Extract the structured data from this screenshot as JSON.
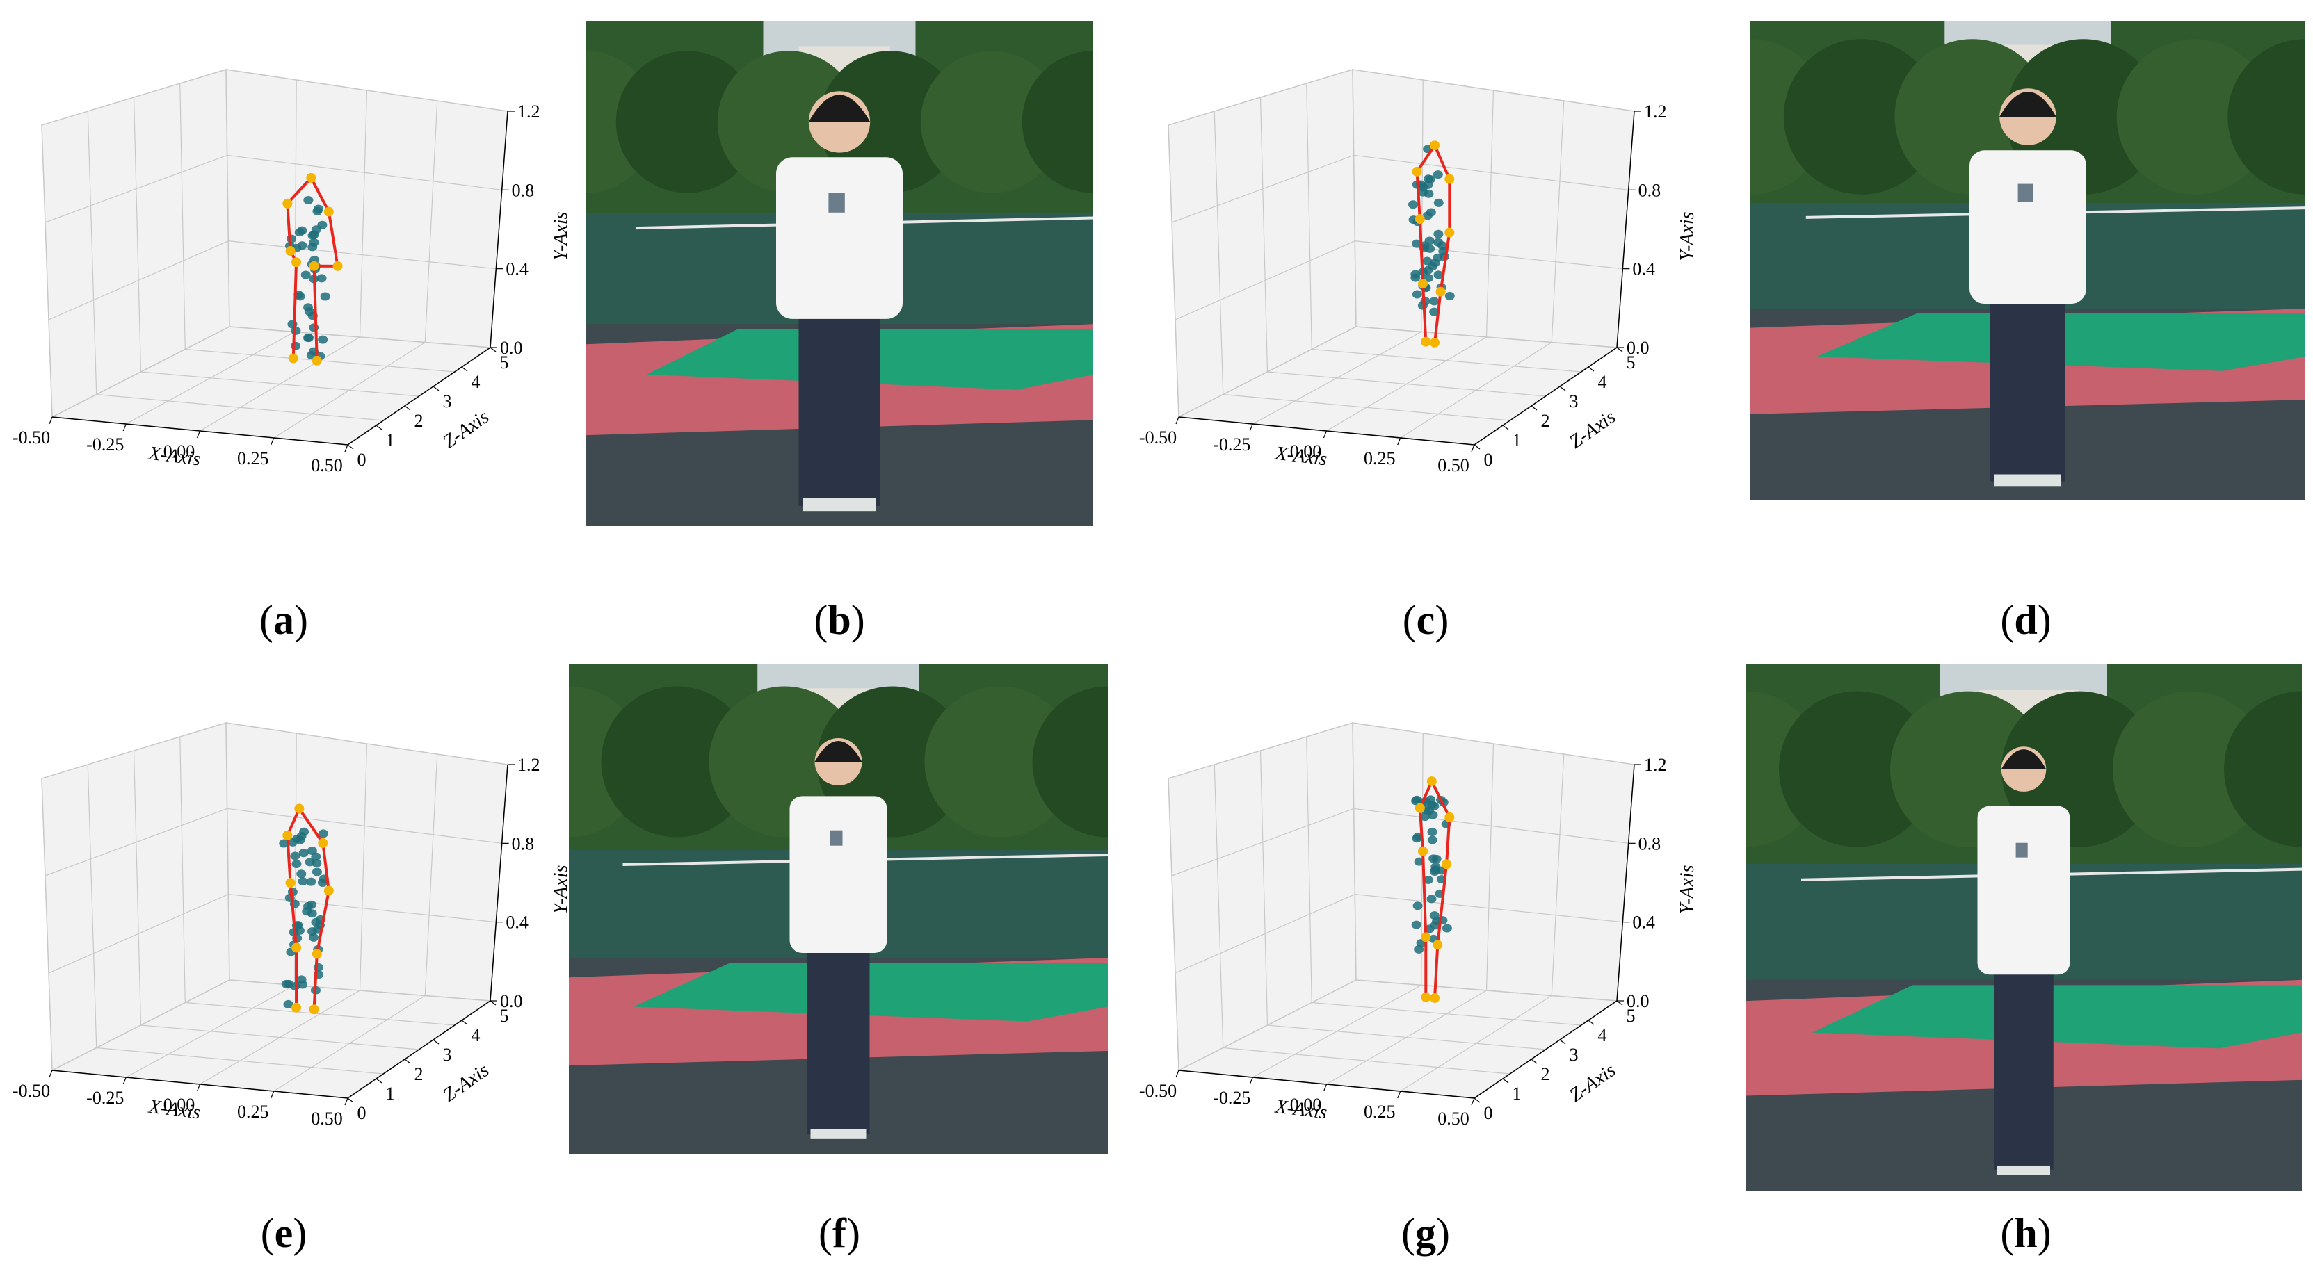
{
  "panels": [
    {
      "id": "a",
      "kind": "plot",
      "caption": "a"
    },
    {
      "id": "b",
      "kind": "photo",
      "caption": "b"
    },
    {
      "id": "c",
      "kind": "plot",
      "caption": "c"
    },
    {
      "id": "d",
      "kind": "photo",
      "caption": "d"
    },
    {
      "id": "e",
      "kind": "plot",
      "caption": "e"
    },
    {
      "id": "f",
      "kind": "photo",
      "caption": "f"
    },
    {
      "id": "g",
      "kind": "plot",
      "caption": "g"
    },
    {
      "id": "h",
      "kind": "photo",
      "caption": "h"
    }
  ],
  "caption_parens": {
    "open": "(",
    "close": ")"
  },
  "colors": {
    "skeleton_line": "#e8261e",
    "joint": "#f5b400",
    "point_cloud": "#1d6e7a",
    "pane": "#f2f2f2",
    "grid": "#c8c8c8"
  },
  "chart_data": [
    {
      "panel": "a",
      "type": "scatter",
      "projection": "3d",
      "xlabel": "X-Axis",
      "ylabel": "Y-Axis",
      "zlabel": "Z-Axis",
      "xticks": [
        "-0.50",
        "-0.25",
        "0.00",
        "0.25",
        "0.50"
      ],
      "yticks": [
        "0.0",
        "0.4",
        "0.8",
        "1.2"
      ],
      "zticks": [
        "0",
        "1",
        "2",
        "3",
        "4",
        "5"
      ],
      "xlim": [
        -0.5,
        0.5
      ],
      "ylim": [
        0,
        1.2
      ],
      "zlim": [
        0,
        5
      ],
      "skeleton": {
        "joints": [
          [
            0.04,
            0.95,
            2.8
          ],
          [
            -0.04,
            0.82,
            2.8
          ],
          [
            0.1,
            0.8,
            2.8
          ],
          [
            -0.03,
            0.6,
            2.8
          ],
          [
            0.13,
            0.55,
            2.8
          ],
          [
            -0.01,
            0.55,
            2.8
          ],
          [
            0.05,
            0.54,
            2.8
          ],
          [
            -0.02,
            0.1,
            2.8
          ],
          [
            0.06,
            0.1,
            2.8
          ]
        ],
        "bones": [
          [
            0,
            1
          ],
          [
            0,
            2
          ],
          [
            1,
            3
          ],
          [
            2,
            4
          ],
          [
            3,
            5
          ],
          [
            4,
            6
          ],
          [
            5,
            7
          ],
          [
            6,
            8
          ]
        ]
      },
      "cloud": {
        "center": [
          0.02,
          0.5,
          2.8
        ],
        "spread": [
          0.05,
          0.4,
          0.2
        ],
        "count": 38
      }
    },
    {
      "panel": "c",
      "type": "scatter",
      "projection": "3d",
      "xlabel": "X-Axis",
      "ylabel": "Y-Axis",
      "zlabel": "Z-Axis",
      "xticks": [
        "-0.50",
        "-0.25",
        "0.00",
        "0.25",
        "0.50"
      ],
      "yticks": [
        "0.0",
        "0.4",
        "0.8",
        "1.2"
      ],
      "zticks": [
        "0",
        "1",
        "2",
        "3",
        "4",
        "5"
      ],
      "xlim": [
        -0.5,
        0.5
      ],
      "ylim": [
        0,
        1.2
      ],
      "zlim": [
        0,
        5
      ],
      "skeleton": {
        "joints": [
          [
            0.03,
            1.1,
            2.8
          ],
          [
            -0.03,
            0.97,
            2.8
          ],
          [
            0.08,
            0.95,
            2.8
          ],
          [
            -0.02,
            0.75,
            2.8
          ],
          [
            0.08,
            0.7,
            2.8
          ],
          [
            -0.01,
            0.45,
            2.8
          ],
          [
            0.05,
            0.42,
            2.8
          ],
          [
            0.0,
            0.18,
            2.8
          ],
          [
            0.03,
            0.18,
            2.8
          ]
        ],
        "bones": [
          [
            0,
            1
          ],
          [
            0,
            2
          ],
          [
            1,
            3
          ],
          [
            2,
            4
          ],
          [
            3,
            5
          ],
          [
            4,
            6
          ],
          [
            5,
            7
          ],
          [
            6,
            8
          ]
        ]
      },
      "cloud": {
        "center": [
          0.02,
          0.7,
          2.8
        ],
        "spread": [
          0.05,
          0.38,
          0.2
        ],
        "count": 46
      }
    },
    {
      "panel": "e",
      "type": "scatter",
      "projection": "3d",
      "xlabel": "X-Axis",
      "ylabel": "Y-Axis",
      "zlabel": "Z-Axis",
      "xticks": [
        "-0.50",
        "-0.25",
        "0.00",
        "0.25",
        "0.50"
      ],
      "yticks": [
        "0.0",
        "0.4",
        "0.8",
        "1.2"
      ],
      "zticks": [
        "0",
        "1",
        "2",
        "3",
        "4",
        "5"
      ],
      "xlim": [
        -0.5,
        0.5
      ],
      "ylim": [
        0,
        1.2
      ],
      "zlim": [
        0,
        5
      ],
      "skeleton": {
        "joints": [
          [
            0.0,
            1.05,
            2.8
          ],
          [
            -0.04,
            0.92,
            2.8
          ],
          [
            0.08,
            0.9,
            2.8
          ],
          [
            -0.03,
            0.7,
            2.8
          ],
          [
            0.1,
            0.68,
            2.8
          ],
          [
            -0.01,
            0.4,
            2.8
          ],
          [
            0.06,
            0.38,
            2.8
          ],
          [
            -0.01,
            0.12,
            2.8
          ],
          [
            0.05,
            0.12,
            2.8
          ]
        ],
        "bones": [
          [
            0,
            1
          ],
          [
            0,
            2
          ],
          [
            1,
            3
          ],
          [
            2,
            4
          ],
          [
            3,
            5
          ],
          [
            4,
            6
          ],
          [
            5,
            7
          ],
          [
            6,
            8
          ]
        ]
      },
      "cloud": {
        "center": [
          0.02,
          0.55,
          2.8
        ],
        "spread": [
          0.06,
          0.42,
          0.2
        ],
        "count": 50
      }
    },
    {
      "panel": "g",
      "type": "scatter",
      "projection": "3d",
      "xlabel": "X-Axis",
      "ylabel": "Y-Axis",
      "zlabel": "Z-Axis",
      "xticks": [
        "-0.50",
        "-0.25",
        "0.00",
        "0.25",
        "0.50"
      ],
      "yticks": [
        "0.0",
        "0.4",
        "0.8",
        "1.2"
      ],
      "zticks": [
        "0",
        "1",
        "2",
        "3",
        "4",
        "5"
      ],
      "xlim": [
        -0.5,
        0.5
      ],
      "ylim": [
        0,
        1.2
      ],
      "zlim": [
        0,
        5
      ],
      "skeleton": {
        "joints": [
          [
            0.02,
            1.18,
            2.8
          ],
          [
            -0.02,
            1.05,
            2.8
          ],
          [
            0.08,
            1.02,
            2.8
          ],
          [
            -0.01,
            0.85,
            2.8
          ],
          [
            0.07,
            0.8,
            2.8
          ],
          [
            0.0,
            0.45,
            2.8
          ],
          [
            0.04,
            0.42,
            2.8
          ],
          [
            0.0,
            0.17,
            2.8
          ],
          [
            0.03,
            0.17,
            2.8
          ]
        ],
        "bones": [
          [
            0,
            1
          ],
          [
            0,
            2
          ],
          [
            1,
            3
          ],
          [
            2,
            4
          ],
          [
            3,
            5
          ],
          [
            4,
            6
          ],
          [
            5,
            7
          ],
          [
            6,
            8
          ]
        ]
      },
      "cloud": {
        "center": [
          0.02,
          0.75,
          2.8
        ],
        "spread": [
          0.04,
          0.35,
          0.2
        ],
        "count": 40
      }
    }
  ]
}
